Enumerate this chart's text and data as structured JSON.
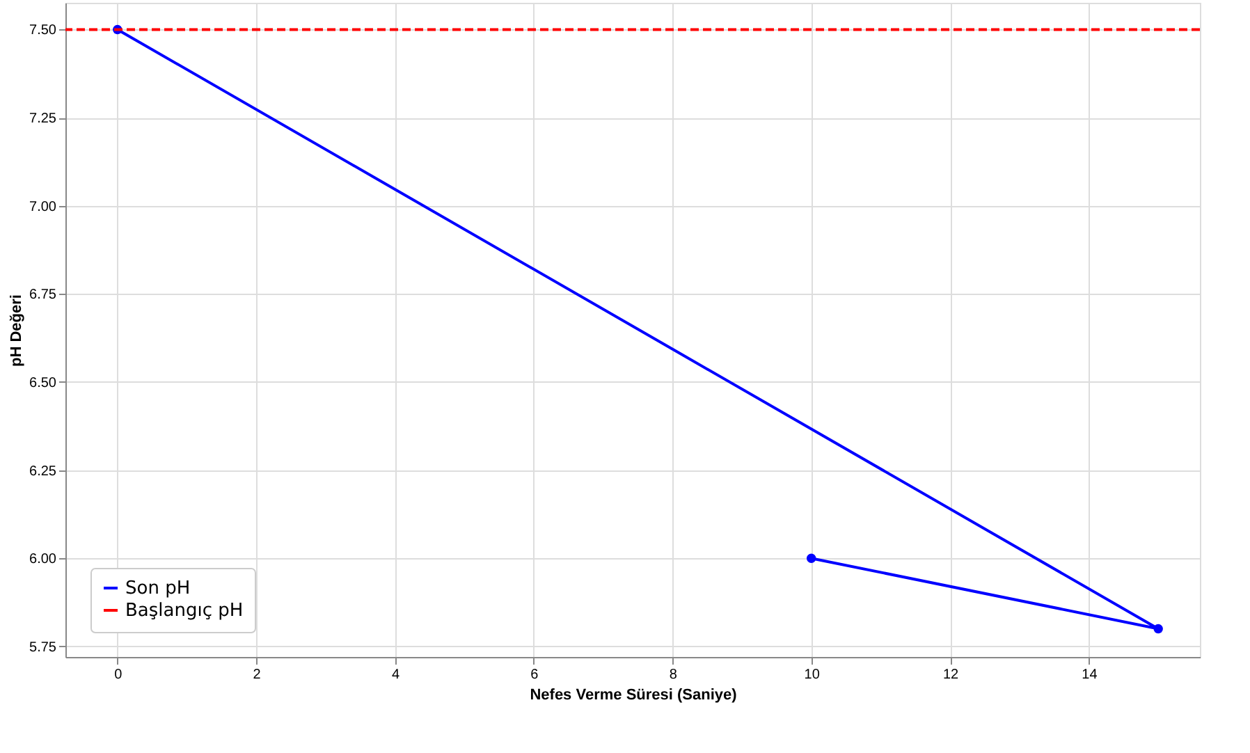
{
  "chart_data": {
    "type": "line",
    "xlabel": "Nefes Verme Süresi (Saniye)",
    "ylabel": "pH Değeri",
    "x": [
      0,
      15,
      10
    ],
    "series": [
      {
        "name": "Son pH",
        "color": "#0000ff",
        "values": [
          7.5,
          5.8,
          6.0
        ]
      }
    ],
    "ref_lines": [
      {
        "axis": "y",
        "value": 7.5,
        "label": "Başlangıç pH",
        "color": "#ff0000",
        "line_style": "dashed"
      }
    ],
    "xlim": [
      -0.75,
      15.6
    ],
    "xticks": [
      0,
      2,
      4,
      6,
      8,
      10,
      12,
      14
    ],
    "ylim": [
      5.72,
      7.576
    ],
    "yticks": [
      5.75,
      {
        "value": 6,
        "label": "6.00"
      },
      6.25,
      {
        "value": 6.5,
        "label": "6.50"
      },
      6.75,
      {
        "value": 7,
        "label": "7.00"
      },
      7.25,
      {
        "value": 7.5,
        "label": "7.50"
      }
    ],
    "grid": true,
    "legend": "bottom left",
    "marker": "circle",
    "line_style": "solid"
  }
}
